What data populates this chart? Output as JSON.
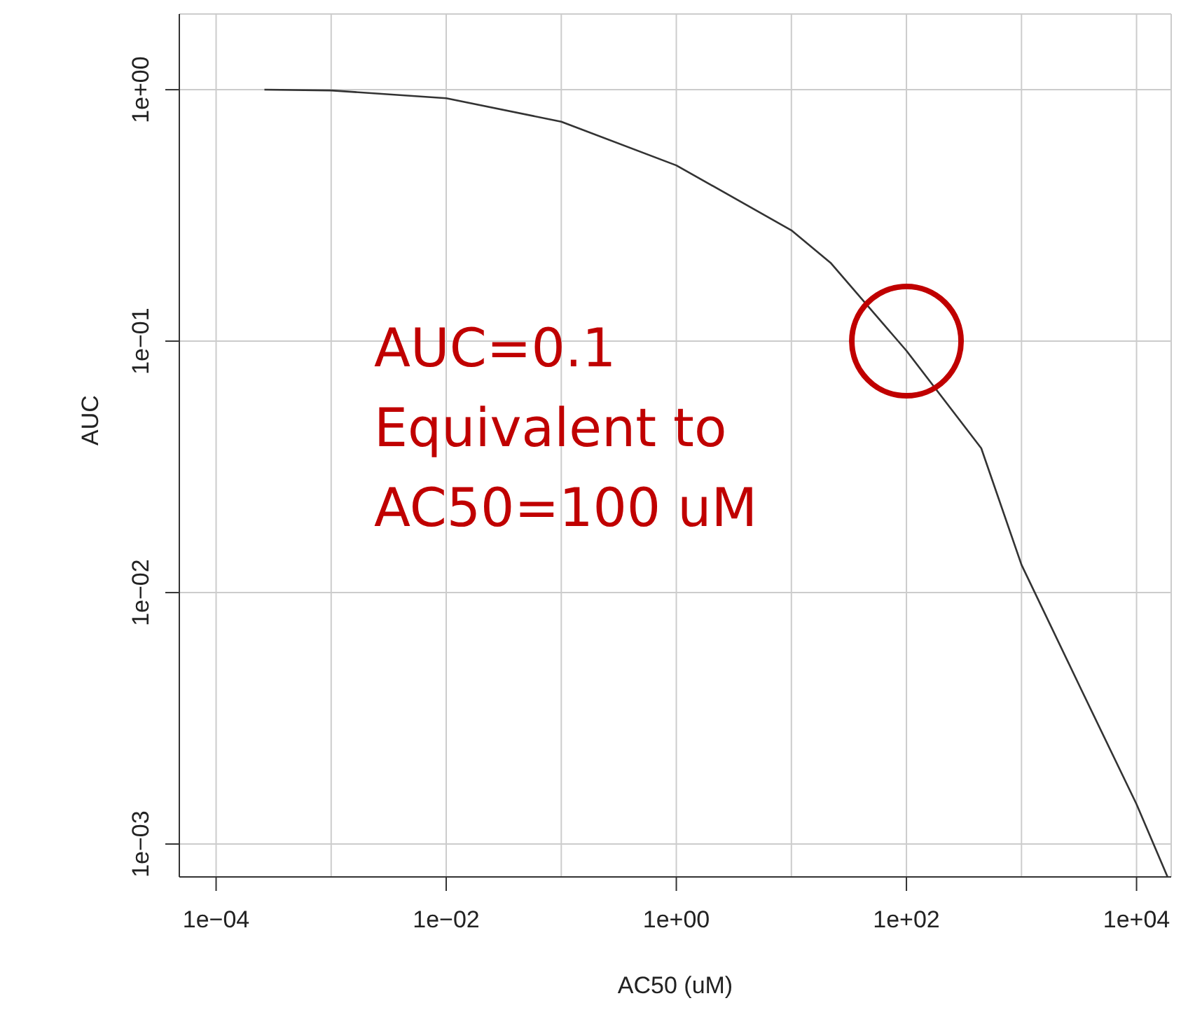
{
  "chart_data": {
    "type": "line",
    "xlabel": "AC50 (uM)",
    "ylabel": "AUC",
    "log": "xy",
    "grid": true,
    "marker": "none",
    "line_style": "solid",
    "x": [
      0.000263,
      0.001,
      0.01,
      0.1,
      1,
      10,
      21.9,
      100,
      447,
      1000,
      3236,
      10000,
      18600
    ],
    "series": [
      {
        "color": "#333333",
        "values": [
          1.0,
          0.993,
          0.925,
          0.746,
          0.5,
          0.276,
          0.205,
          0.0916,
          0.0375,
          0.0129,
          0.0042,
          0.00144,
          0.00074
        ]
      }
    ],
    "xlim": [
      4.79e-05,
      20000
    ],
    "ylim": [
      0.00074,
      2.0
    ],
    "xticks": [
      {
        "value": 0.0001,
        "label": "1e−04"
      },
      {
        "value": 0.001,
        "label": null
      },
      {
        "value": 0.01,
        "label": "1e−02"
      },
      {
        "value": 0.1,
        "label": null
      },
      {
        "value": 1,
        "label": "1e+00"
      },
      {
        "value": 10,
        "label": null
      },
      {
        "value": 100,
        "label": "1e+02"
      },
      {
        "value": 1000,
        "label": null
      },
      {
        "value": 10000,
        "label": "1e+04"
      }
    ],
    "yticks": [
      {
        "value": 0.001,
        "label": "1e−03"
      },
      {
        "value": 0.01,
        "label": "1e−02"
      },
      {
        "value": 0.1,
        "label": "1e−01"
      },
      {
        "value": 1,
        "label": "1e+00"
      }
    ],
    "annotations": [
      {
        "text": "AUC=0.1\nEquivalent to\nAC50=100 uM",
        "x": 100,
        "y": 0.1
      }
    ]
  }
}
